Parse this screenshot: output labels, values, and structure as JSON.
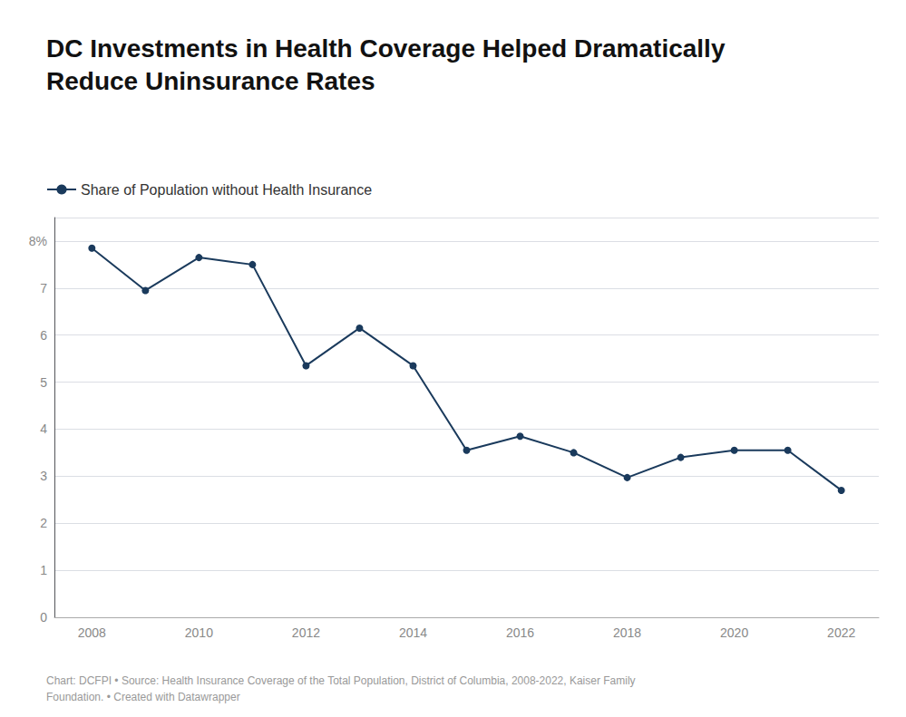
{
  "chart_data": {
    "type": "line",
    "title": "DC Investments in Health Coverage Helped Dramatically\nReduce Uninsurance Rates",
    "annotations": [
      "Chart: DCFPI • Source: Health Insurance Coverage of the Total Population, District of Columbia, 2008-2022, Kaiser Family\nFoundation. • Created with Datawrapper"
    ],
    "x": [
      2008,
      2009,
      2010,
      2011,
      2012,
      2013,
      2014,
      2015,
      2016,
      2017,
      2018,
      2019,
      2020,
      2021,
      2022
    ],
    "series": [
      {
        "name": "Share of Population without Health Insurance",
        "color": "#1a3a5c",
        "marker": "circle",
        "values": [
          7.85,
          6.95,
          7.65,
          7.5,
          5.35,
          6.15,
          5.35,
          3.55,
          3.85,
          3.5,
          2.97,
          3.4,
          3.55,
          3.55,
          2.7
        ]
      }
    ],
    "xlim": [
      2007.3,
      2022.7
    ],
    "xticks": [
      2008,
      2010,
      2012,
      2014,
      2016,
      2018,
      2020,
      2022
    ],
    "ylim": [
      0,
      8.5
    ],
    "yticks": [
      0,
      1,
      2,
      3,
      4,
      5,
      6,
      7,
      {
        "value": 8,
        "label": "8%"
      }
    ],
    "grid": true,
    "legend": "top-left"
  }
}
